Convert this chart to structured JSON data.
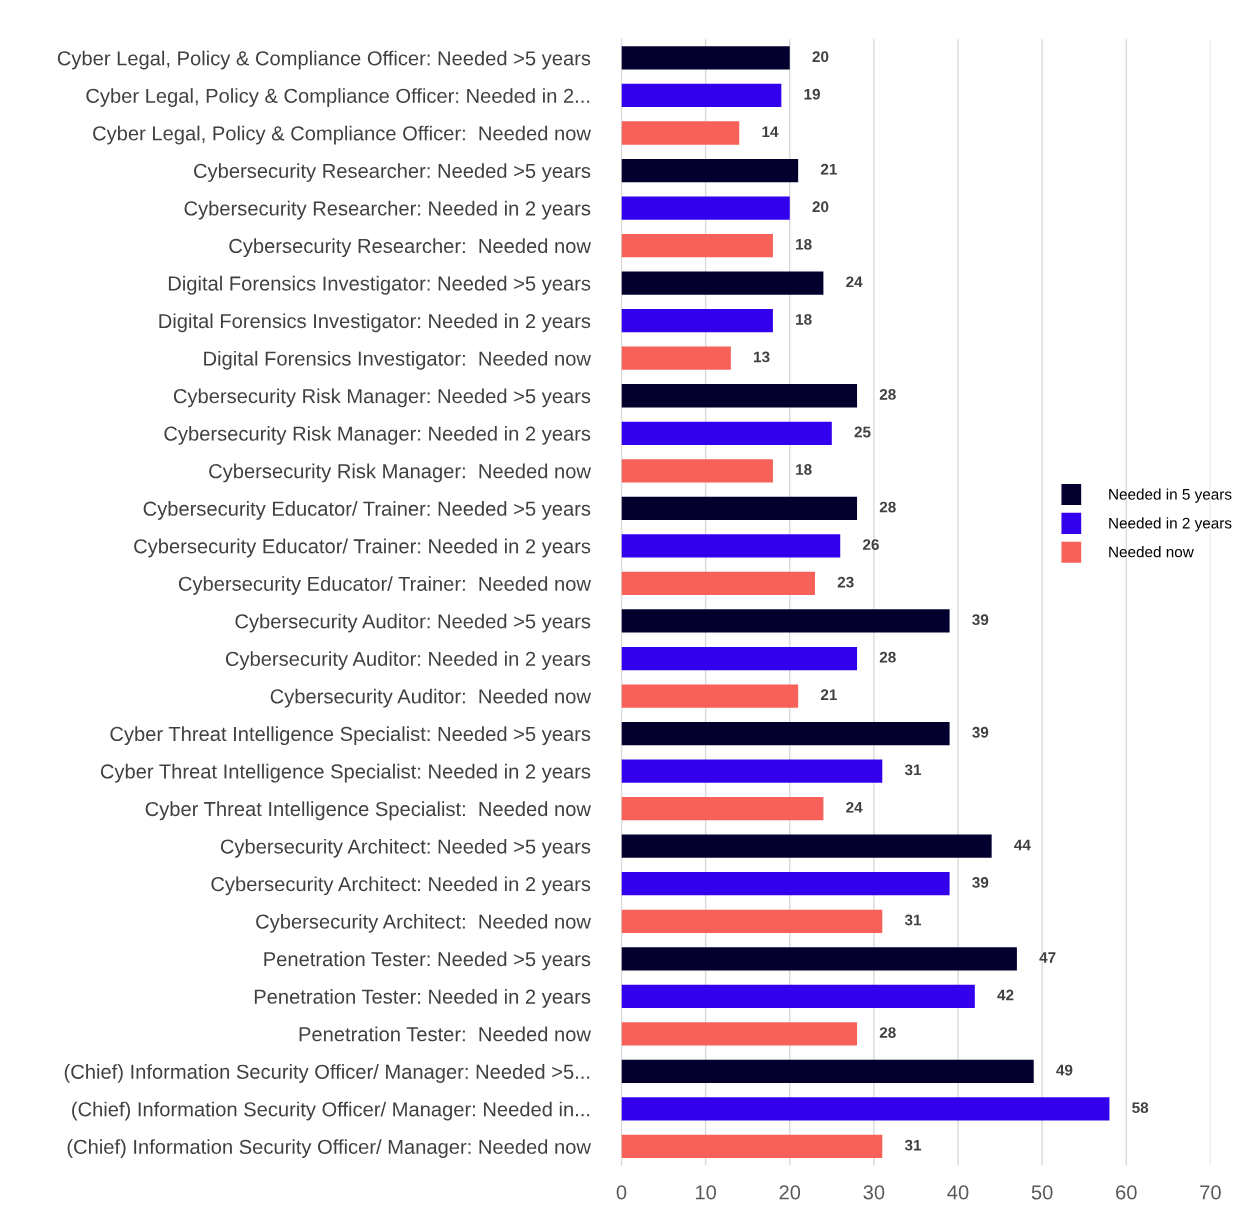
{
  "chart_data": {
    "type": "bar",
    "orientation": "horizontal",
    "categories": [
      "Cyber Legal, Policy & Compliance Officer: Needed >5 years",
      "Cyber Legal, Policy & Compliance Officer: Needed in 2...",
      "Cyber Legal, Policy & Compliance Officer:  Needed now",
      "Cybersecurity Researcher: Needed >5 years",
      "Cybersecurity Researcher: Needed in 2 years",
      "Cybersecurity Researcher:  Needed now",
      "Digital Forensics Investigator: Needed >5 years",
      "Digital Forensics Investigator: Needed in 2 years",
      "Digital Forensics Investigator:  Needed now",
      "Cybersecurity Risk Manager: Needed >5 years",
      "Cybersecurity Risk Manager: Needed in 2 years",
      "Cybersecurity Risk Manager:  Needed now",
      "Cybersecurity Educator/ Trainer: Needed >5 years",
      "Cybersecurity Educator/ Trainer: Needed in 2 years",
      "Cybersecurity Educator/ Trainer:  Needed now",
      "Cybersecurity Auditor: Needed >5 years",
      "Cybersecurity Auditor: Needed in 2 years",
      "Cybersecurity Auditor:  Needed now",
      "Cyber Threat Intelligence Specialist: Needed >5 years",
      "Cyber Threat Intelligence Specialist: Needed in 2 years",
      "Cyber Threat Intelligence Specialist:  Needed now",
      "Cybersecurity Architect: Needed >5 years",
      "Cybersecurity Architect: Needed in 2 years",
      "Cybersecurity Architect:  Needed now",
      "Penetration Tester: Needed >5 years",
      "Penetration Tester: Needed in 2 years",
      "Penetration Tester:  Needed now",
      "(Chief) Information Security Officer/ Manager: Needed >5...",
      "(Chief) Information Security Officer/ Manager: Needed in...",
      "(Chief) Information Security Officer/ Manager: Needed now"
    ],
    "series": [
      {
        "name": "Needed in 5 years",
        "color": "#03002e",
        "values": [
          20,
          null,
          null,
          21,
          null,
          null,
          24,
          null,
          null,
          28,
          null,
          null,
          28,
          null,
          null,
          39,
          null,
          null,
          39,
          null,
          null,
          44,
          null,
          null,
          47,
          null,
          null,
          49,
          null,
          null
        ]
      },
      {
        "name": "Needed in 2 years",
        "color": "#3300ee",
        "values": [
          null,
          19,
          null,
          null,
          20,
          null,
          null,
          18,
          null,
          null,
          25,
          null,
          null,
          26,
          null,
          null,
          28,
          null,
          null,
          31,
          null,
          null,
          39,
          null,
          null,
          42,
          null,
          null,
          58,
          null
        ]
      },
      {
        "name": "Needed now",
        "color": "#f8605a",
        "values": [
          null,
          null,
          14,
          null,
          null,
          18,
          null,
          null,
          13,
          null,
          null,
          18,
          null,
          null,
          23,
          null,
          null,
          21,
          null,
          null,
          24,
          null,
          null,
          31,
          null,
          null,
          28,
          null,
          null,
          31
        ]
      }
    ],
    "xlim": [
      0,
      70
    ],
    "xticks": [
      0,
      10,
      20,
      30,
      40,
      50,
      60,
      70
    ],
    "grid": "x",
    "legend": "right",
    "data_labels": true
  }
}
